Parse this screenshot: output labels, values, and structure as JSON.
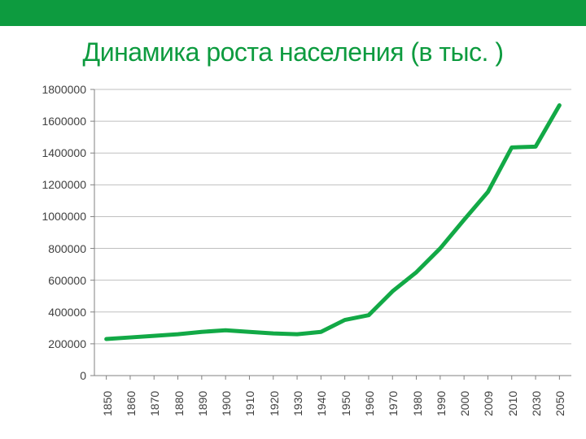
{
  "header_bar_color": "#0d9b3f",
  "title": {
    "text": "Динамика роста населения (в тыс. )",
    "color": "#0d9b3f",
    "fontsize": 32
  },
  "chart": {
    "type": "line",
    "background_color": "#ffffff",
    "grid_color": "#bfbfbf",
    "axis_color": "#808080",
    "line_color": "#12a946",
    "line_width": 5,
    "label_color": "#404040",
    "label_fontsize": 14,
    "ylim": [
      0,
      1800000
    ],
    "ytick_step": 200000,
    "yticks": [
      0,
      200000,
      400000,
      600000,
      800000,
      1000000,
      1200000,
      1400000,
      1600000,
      1800000
    ],
    "categories": [
      "1850",
      "1860",
      "1870",
      "1880",
      "1890",
      "1900",
      "1910",
      "1920",
      "1930",
      "1940",
      "1950",
      "1960",
      "1970",
      "1980",
      "1990",
      "2000",
      "2009",
      "2010",
      "2030",
      "2050"
    ],
    "values": [
      230000,
      240000,
      250000,
      260000,
      275000,
      285000,
      275000,
      265000,
      260000,
      275000,
      350000,
      380000,
      530000,
      650000,
      800000,
      980000,
      1155000,
      1435000,
      1440000,
      1700000
    ]
  }
}
